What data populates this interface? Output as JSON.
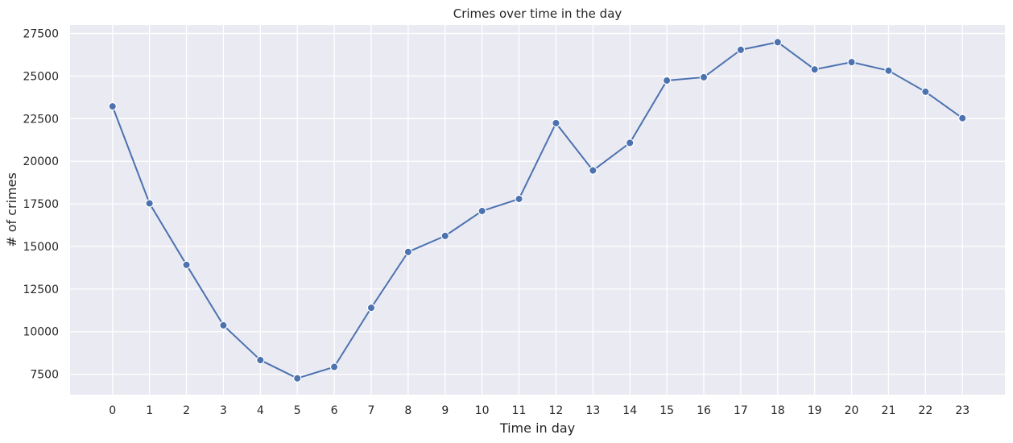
{
  "chart_data": {
    "type": "line",
    "title": "Crimes over time in the day",
    "xlabel": "Time in day",
    "ylabel": "# of crimes",
    "x": [
      0,
      1,
      2,
      3,
      4,
      5,
      6,
      7,
      8,
      9,
      10,
      11,
      12,
      13,
      14,
      15,
      16,
      17,
      18,
      19,
      20,
      21,
      22,
      23
    ],
    "x_tick_labels": [
      "0",
      "1",
      "2",
      "3",
      "4",
      "5",
      "6",
      "7",
      "8",
      "9",
      "10",
      "11",
      "12",
      "13",
      "14",
      "15",
      "16",
      "17",
      "18",
      "19",
      "20",
      "21",
      "22",
      "23"
    ],
    "y_ticks": [
      7500,
      10000,
      12500,
      15000,
      17500,
      20000,
      22500,
      25000,
      27500
    ],
    "y_tick_labels": [
      "7500",
      "10000",
      "12500",
      "15000",
      "17500",
      "20000",
      "22500",
      "25000",
      "27500"
    ],
    "xlim": [
      -1.15,
      24.15
    ],
    "ylim": [
      6300,
      28000
    ],
    "series": [
      {
        "values": [
          23220,
          17530,
          13920,
          10370,
          8330,
          7260,
          7930,
          11400,
          14680,
          15620,
          17080,
          17790,
          22240,
          19460,
          21080,
          24740,
          24930,
          26540,
          26990,
          25390,
          25820,
          25320,
          24080,
          22530
        ],
        "color": "#4c72b0"
      }
    ],
    "grid": true,
    "background": "#eaeaf2",
    "legend": "none"
  }
}
